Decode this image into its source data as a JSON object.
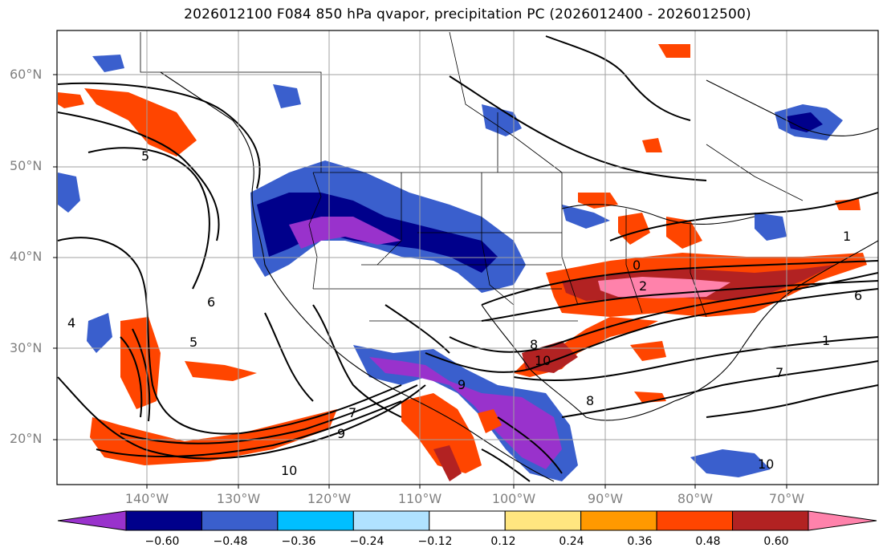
{
  "title": "2026012100 F084 850 hPa qvapor, precipitation PC (2026012400 - 2026012500)",
  "lat_labels": [
    "60°N",
    "50°N",
    "40°N",
    "30°N",
    "20°N"
  ],
  "lon_labels": [
    "140°W",
    "130°W",
    "120°W",
    "110°W",
    "100°W",
    "90°W",
    "80°W",
    "70°W"
  ],
  "colorbar": {
    "labels": [
      "−0.60",
      "−0.48",
      "−0.36",
      "−0.24",
      "−0.12",
      "0.12",
      "0.24",
      "0.36",
      "0.48",
      "0.60"
    ],
    "colors": [
      "#9932cc",
      "#00008b",
      "#3a5fcd",
      "#00bfff",
      "#b0e2ff",
      "#ffffff",
      "#ffe680",
      "#ff9900",
      "#ff4500",
      "#b22222",
      "#ff82ab"
    ]
  },
  "contour_labels": [
    "5",
    "5",
    "6",
    "6",
    "7",
    "7",
    "8",
    "8",
    "9",
    "9",
    "10",
    "10",
    "1",
    "1",
    "2",
    "0",
    "4",
    "10"
  ]
}
